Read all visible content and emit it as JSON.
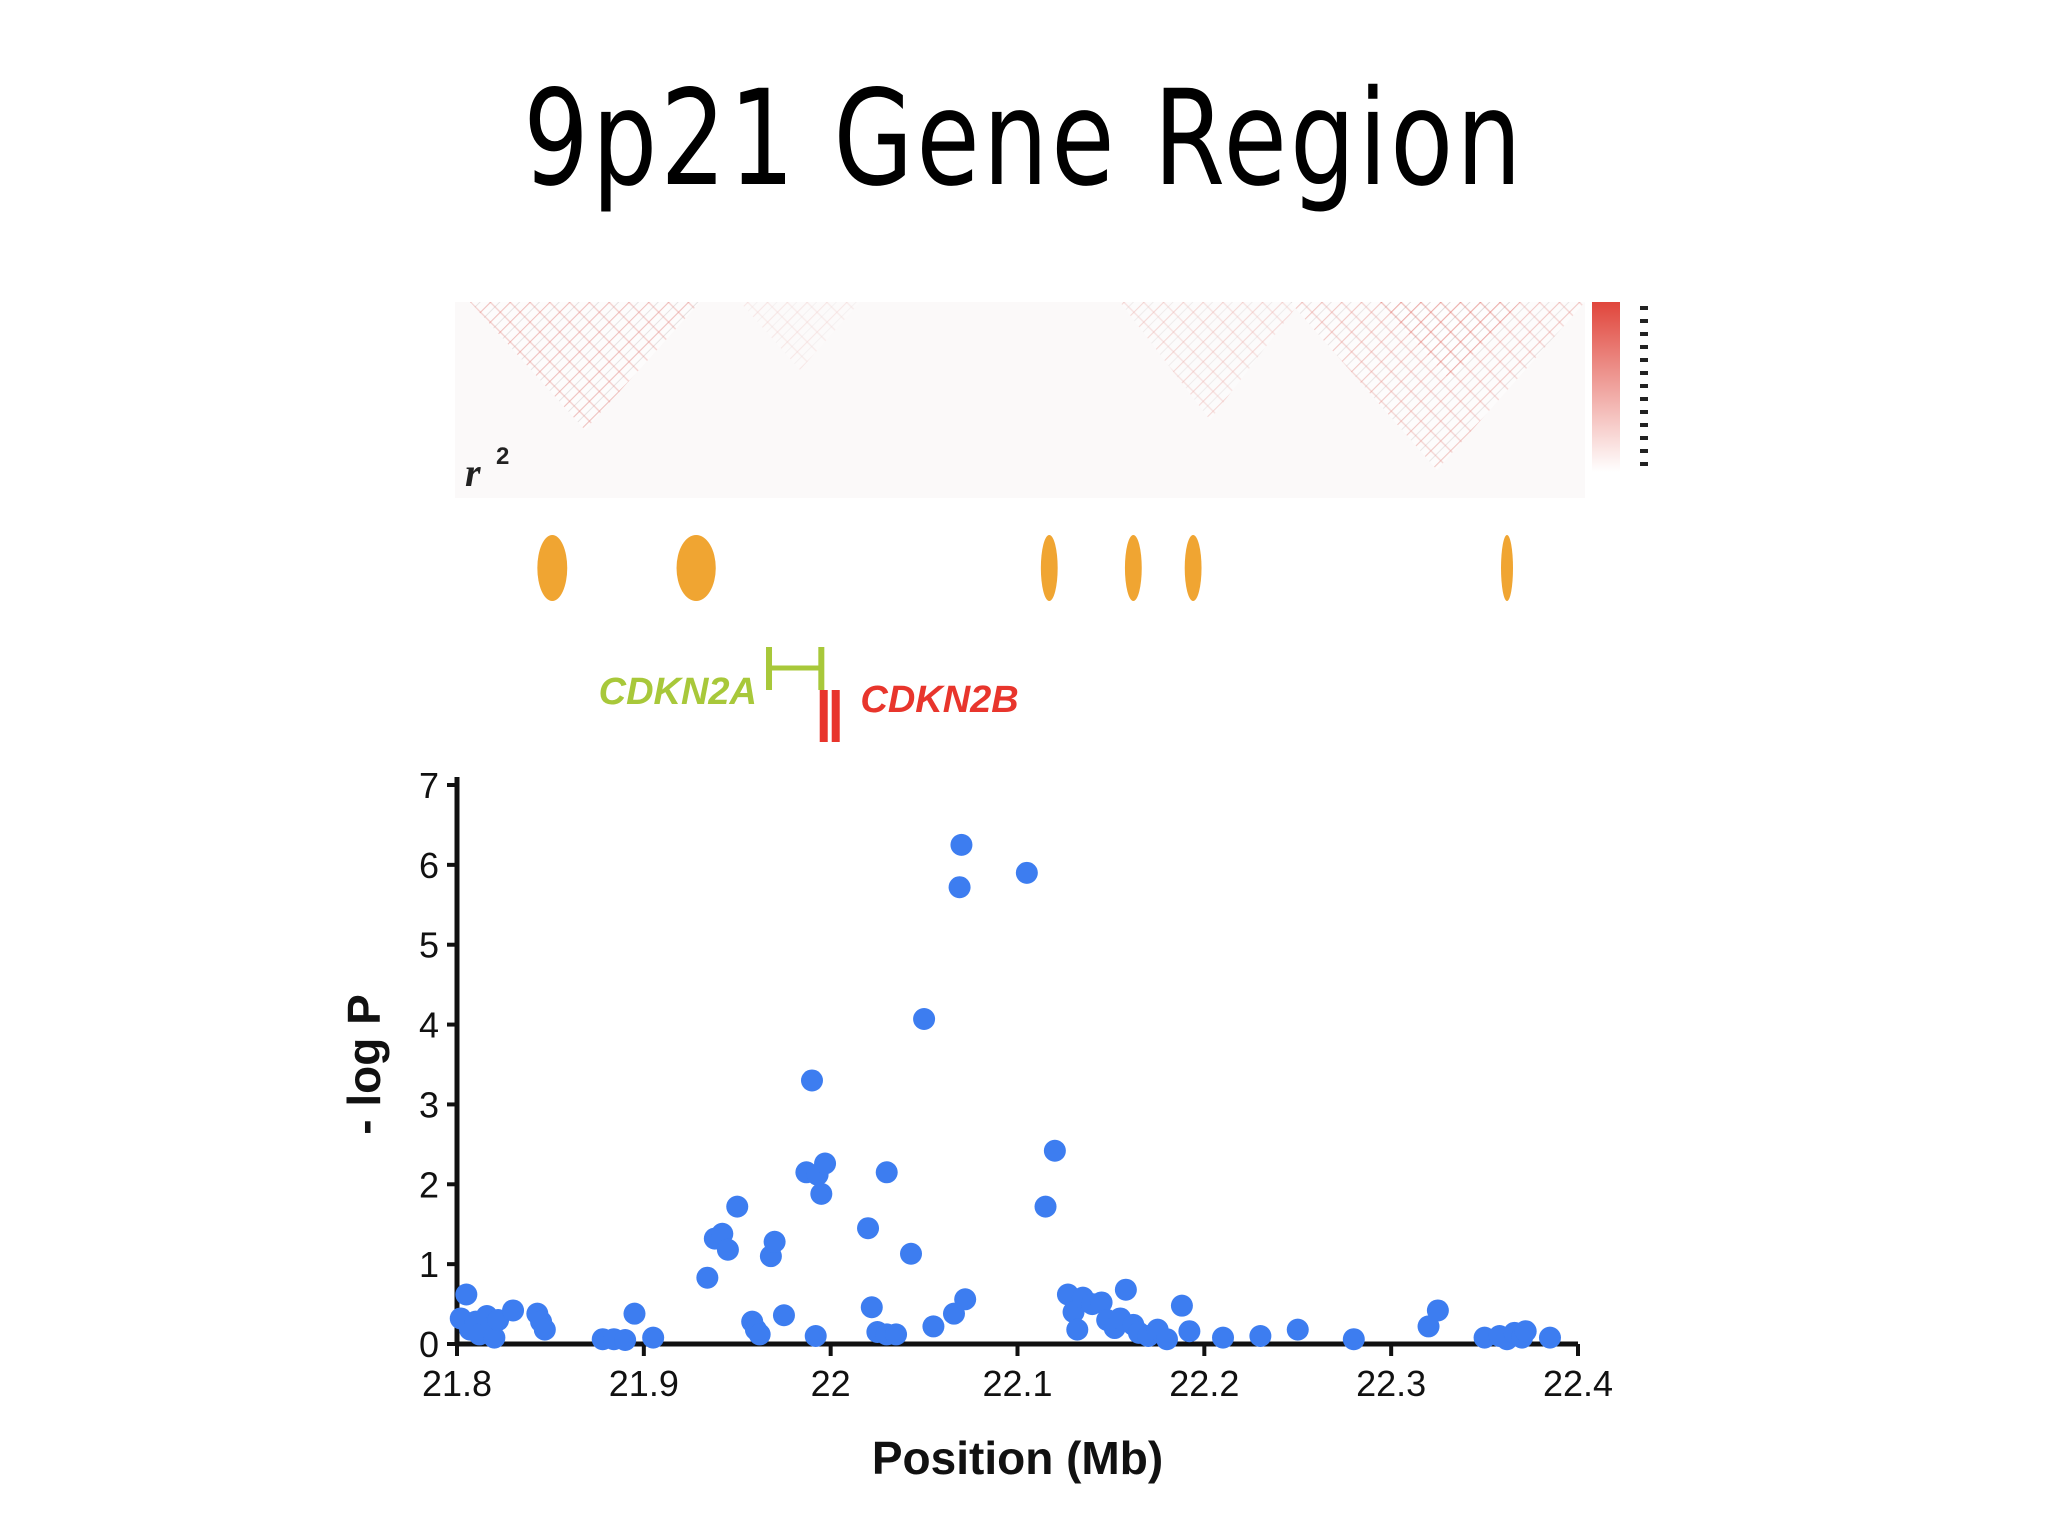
{
  "title": "9p21 Gene Region",
  "colors": {
    "ld_high": "#e0463c",
    "ld_low": "#ffffff",
    "block": "#f0a532",
    "cdkn2a": "#a8c83a",
    "cdkn2b": "#e8352c",
    "points": "#3d7df0",
    "axis": "#111111"
  },
  "ld_panel": {
    "label_r": "r",
    "label_sup": "2"
  },
  "haplotype_blocks": [
    {
      "center": 21.851,
      "width_mb": 0.016
    },
    {
      "center": 21.928,
      "width_mb": 0.021
    },
    {
      "center": 22.117,
      "width_mb": 0.009
    },
    {
      "center": 22.162,
      "width_mb": 0.009
    },
    {
      "center": 22.194,
      "width_mb": 0.009
    },
    {
      "center": 22.362,
      "width_mb": 0.005
    }
  ],
  "genes": [
    {
      "name": "CDKN2A",
      "start": 21.967,
      "end": 21.995
    },
    {
      "name": "CDKN2B",
      "start": 21.992,
      "end": 22.002
    }
  ],
  "chart_data": {
    "type": "scatter",
    "xlabel": "Position (Mb)",
    "ylabel": "- log P",
    "xlim": [
      21.8,
      22.4
    ],
    "ylim": [
      0,
      7
    ],
    "xticks": [
      "21.8",
      "21.9",
      "22",
      "22.1",
      "22.2",
      "22.3",
      "22.4"
    ],
    "yticks": [
      "0",
      "1",
      "2",
      "3",
      "4",
      "5",
      "6",
      "7"
    ],
    "grid": false,
    "points": [
      [
        21.802,
        0.32
      ],
      [
        21.805,
        0.62
      ],
      [
        21.807,
        0.18
      ],
      [
        21.81,
        0.28
      ],
      [
        21.812,
        0.12
      ],
      [
        21.816,
        0.35
      ],
      [
        21.818,
        0.2
      ],
      [
        21.82,
        0.08
      ],
      [
        21.822,
        0.3
      ],
      [
        21.83,
        0.42
      ],
      [
        21.843,
        0.38
      ],
      [
        21.845,
        0.28
      ],
      [
        21.847,
        0.18
      ],
      [
        21.878,
        0.06
      ],
      [
        21.884,
        0.06
      ],
      [
        21.89,
        0.05
      ],
      [
        21.895,
        0.38
      ],
      [
        21.905,
        0.08
      ],
      [
        21.934,
        0.83
      ],
      [
        21.938,
        1.32
      ],
      [
        21.942,
        1.38
      ],
      [
        21.945,
        1.18
      ],
      [
        21.95,
        1.72
      ],
      [
        21.958,
        0.28
      ],
      [
        21.96,
        0.18
      ],
      [
        21.962,
        0.12
      ],
      [
        21.968,
        1.1
      ],
      [
        21.97,
        1.28
      ],
      [
        21.975,
        0.36
      ],
      [
        21.987,
        2.15
      ],
      [
        21.99,
        3.3
      ],
      [
        21.993,
        2.12
      ],
      [
        21.995,
        1.88
      ],
      [
        21.997,
        2.26
      ],
      [
        21.992,
        0.1
      ],
      [
        22.02,
        1.45
      ],
      [
        22.022,
        0.46
      ],
      [
        22.025,
        0.15
      ],
      [
        22.03,
        0.12
      ],
      [
        22.03,
        2.15
      ],
      [
        22.035,
        0.12
      ],
      [
        22.043,
        1.13
      ],
      [
        22.05,
        4.07
      ],
      [
        22.055,
        0.22
      ],
      [
        22.066,
        0.38
      ],
      [
        22.069,
        5.72
      ],
      [
        22.07,
        6.25
      ],
      [
        22.072,
        0.56
      ],
      [
        22.105,
        5.9
      ],
      [
        22.115,
        1.72
      ],
      [
        22.12,
        2.42
      ],
      [
        22.127,
        0.62
      ],
      [
        22.13,
        0.4
      ],
      [
        22.132,
        0.18
      ],
      [
        22.135,
        0.58
      ],
      [
        22.14,
        0.5
      ],
      [
        22.145,
        0.52
      ],
      [
        22.148,
        0.3
      ],
      [
        22.152,
        0.2
      ],
      [
        22.155,
        0.32
      ],
      [
        22.158,
        0.68
      ],
      [
        22.162,
        0.24
      ],
      [
        22.165,
        0.14
      ],
      [
        22.17,
        0.1
      ],
      [
        22.175,
        0.18
      ],
      [
        22.18,
        0.06
      ],
      [
        22.188,
        0.48
      ],
      [
        22.192,
        0.16
      ],
      [
        22.21,
        0.08
      ],
      [
        22.23,
        0.1
      ],
      [
        22.25,
        0.18
      ],
      [
        22.28,
        0.06
      ],
      [
        22.32,
        0.22
      ],
      [
        22.325,
        0.42
      ],
      [
        22.35,
        0.08
      ],
      [
        22.358,
        0.1
      ],
      [
        22.362,
        0.06
      ],
      [
        22.366,
        0.14
      ],
      [
        22.37,
        0.08
      ],
      [
        22.372,
        0.16
      ],
      [
        22.385,
        0.08
      ]
    ]
  }
}
